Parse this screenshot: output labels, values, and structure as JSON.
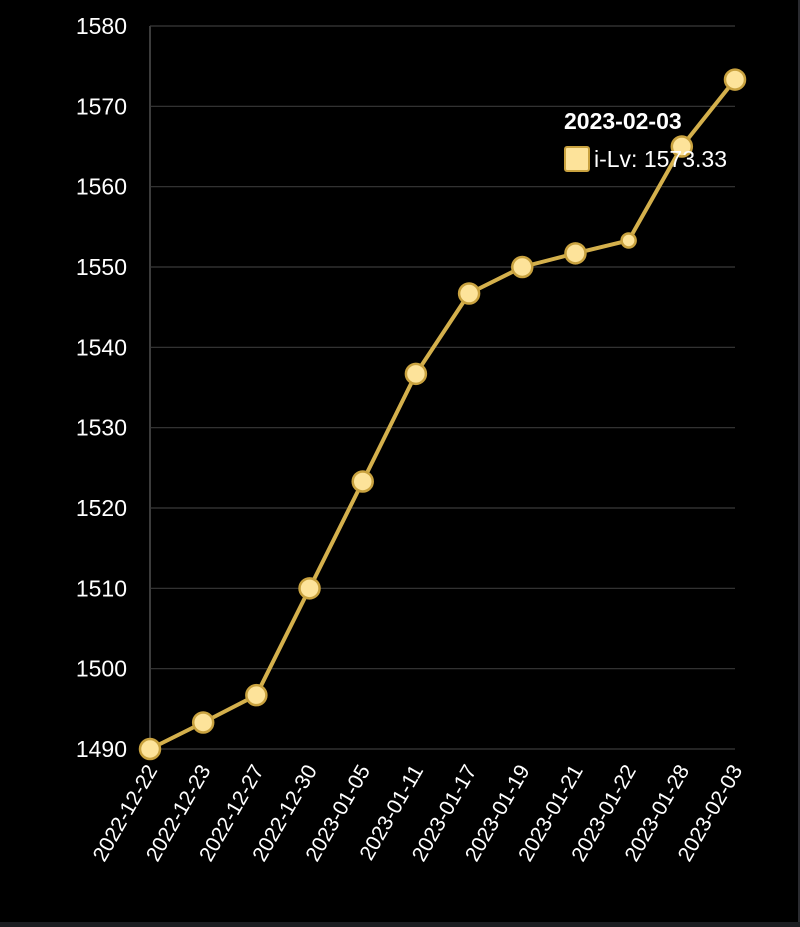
{
  "chart_data": {
    "type": "line",
    "x": [
      "2022-12-22",
      "2022-12-23",
      "2022-12-27",
      "2022-12-30",
      "2023-01-05",
      "2023-01-11",
      "2023-01-17",
      "2023-01-19",
      "2023-01-21",
      "2023-01-22",
      "2023-01-28",
      "2023-02-03"
    ],
    "series": [
      {
        "name": "i-Lv",
        "values": [
          1490,
          1493.3,
          1496.7,
          1510,
          1523.3,
          1536.7,
          1546.7,
          1550,
          1551.7,
          1553.3,
          1565,
          1573.33
        ]
      }
    ],
    "ylim": [
      1490,
      1580
    ],
    "yticks": [
      1490,
      1500,
      1510,
      1520,
      1530,
      1540,
      1550,
      1560,
      1570,
      1580
    ],
    "grid": true,
    "colors": {
      "line": "#d4b04c",
      "marker_fill": "#fde39a",
      "marker_stroke": "#c9a23f",
      "background": "#000000"
    }
  },
  "tooltip": {
    "title": "2023-02-03",
    "series_name": "i-Lv",
    "value": "1573.33",
    "label": "i-Lv: 1573.33"
  }
}
